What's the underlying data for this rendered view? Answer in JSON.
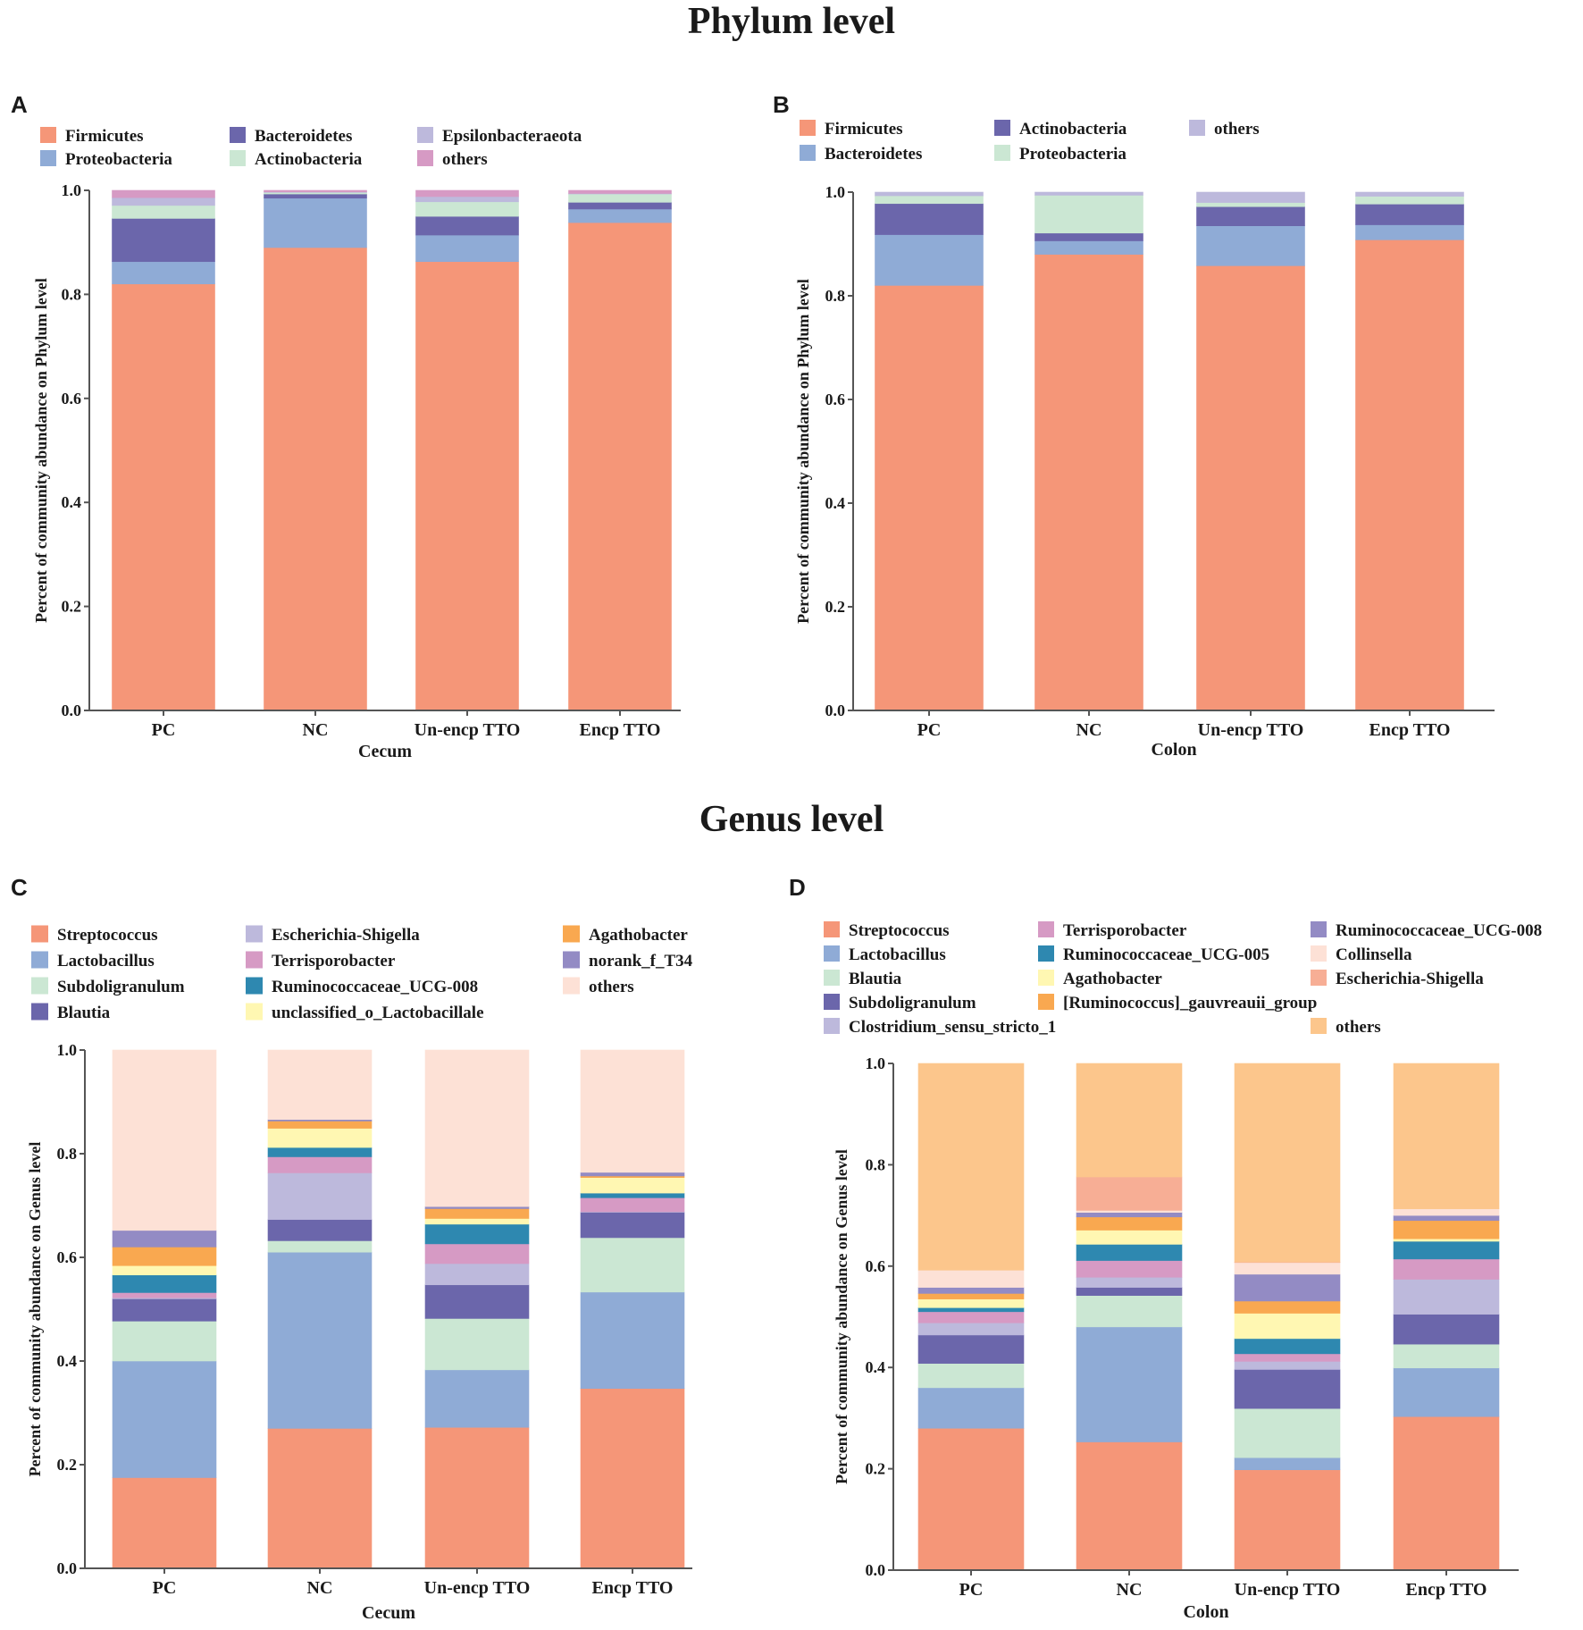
{
  "titles": {
    "phylum": "Phylum level",
    "genus": "Genus level"
  },
  "chart_data": [
    {
      "id": "A",
      "type": "bar",
      "stacked": true,
      "title": "",
      "xlabel": "Cecum",
      "ylabel": "Percent of community abundance on Phylum level",
      "ylim": [
        0,
        1.0
      ],
      "yticks": [
        "0.0",
        "0.2",
        "0.4",
        "0.6",
        "0.8",
        "1.0"
      ],
      "categories": [
        "PC",
        "NC",
        "Un-encp TTO",
        "Encp TTO"
      ],
      "legend_columns": 3,
      "series": [
        {
          "name": "Firmicutes",
          "color": "#F59678",
          "values": [
            0.82,
            0.89,
            0.863,
            0.938
          ]
        },
        {
          "name": "Proteobacteria",
          "color": "#8FABD6",
          "values": [
            0.043,
            0.095,
            0.051,
            0.026
          ]
        },
        {
          "name": "Bacteroidetes",
          "color": "#6B66AB",
          "values": [
            0.083,
            0.008,
            0.036,
            0.013
          ]
        },
        {
          "name": "Actinobacteria",
          "color": "#CBE7D3",
          "values": [
            0.025,
            0.003,
            0.028,
            0.016
          ]
        },
        {
          "name": "Epsilonbacteraeota",
          "color": "#BDB9DC",
          "values": [
            0.015,
            0.001,
            0.01,
            0.001
          ]
        },
        {
          "name": "others",
          "color": "#D69AC4",
          "values": [
            0.014,
            0.003,
            0.012,
            0.006
          ]
        }
      ],
      "legend_order": [
        "Firmicutes",
        "Proteobacteria",
        "Bacteroidetes",
        "Actinobacteria",
        "Epsilonbacteraeota",
        "others"
      ]
    },
    {
      "id": "B",
      "type": "bar",
      "stacked": true,
      "title": "",
      "xlabel": "Colon",
      "ylabel": "Percent of community abundance on Phylum level",
      "ylim": [
        0,
        1.0
      ],
      "yticks": [
        "0.0",
        "0.2",
        "0.4",
        "0.6",
        "0.8",
        "1.0"
      ],
      "categories": [
        "PC",
        "NC",
        "Un-encp TTO",
        "Encp TTO"
      ],
      "legend_columns": 3,
      "series": [
        {
          "name": "Firmicutes",
          "color": "#F59678",
          "values": [
            0.82,
            0.88,
            0.858,
            0.908
          ]
        },
        {
          "name": "Bacteroidetes",
          "color": "#8FABD6",
          "values": [
            0.098,
            0.026,
            0.077,
            0.029
          ]
        },
        {
          "name": "Actinobacteria",
          "color": "#6B66AB",
          "values": [
            0.06,
            0.015,
            0.037,
            0.04
          ]
        },
        {
          "name": "Proteobacteria",
          "color": "#CBE7D3",
          "values": [
            0.015,
            0.073,
            0.008,
            0.015
          ]
        },
        {
          "name": "others",
          "color": "#BDB9DC",
          "values": [
            0.007,
            0.006,
            0.02,
            0.008
          ]
        }
      ],
      "legend_order": [
        "Firmicutes",
        "Bacteroidetes",
        "Actinobacteria",
        "Proteobacteria",
        "others"
      ]
    },
    {
      "id": "C",
      "type": "bar",
      "stacked": true,
      "title": "",
      "xlabel": "Cecum",
      "ylabel": "Percent of community abundance on Genus level",
      "ylim": [
        0,
        1.0
      ],
      "yticks": [
        "0.0",
        "0.2",
        "0.4",
        "0.6",
        "0.8",
        "1.0"
      ],
      "categories": [
        "PC",
        "NC",
        "Un-encp TTO",
        "Encp TTO"
      ],
      "legend_columns": 3,
      "series": [
        {
          "name": "Streptococcus",
          "color": "#F59678",
          "values": [
            0.175,
            0.27,
            0.272,
            0.347
          ]
        },
        {
          "name": "Lactobacillus",
          "color": "#8FABD6",
          "values": [
            0.225,
            0.34,
            0.111,
            0.186
          ]
        },
        {
          "name": "Subdoligranulum",
          "color": "#CBE7D3",
          "values": [
            0.077,
            0.022,
            0.099,
            0.105
          ]
        },
        {
          "name": "Blautia",
          "color": "#6B66AB",
          "values": [
            0.043,
            0.041,
            0.065,
            0.049
          ]
        },
        {
          "name": "Escherichia-Shigella",
          "color": "#BDB9DC",
          "values": [
            0.002,
            0.09,
            0.041,
            0.001
          ]
        },
        {
          "name": "Terrisporobacter",
          "color": "#D69AC4",
          "values": [
            0.01,
            0.031,
            0.038,
            0.027
          ]
        },
        {
          "name": "Ruminococcaceae_UCG-008",
          "color": "#2E88B0",
          "values": [
            0.034,
            0.018,
            0.038,
            0.009
          ]
        },
        {
          "name": "unclassified_o_Lactobacillale",
          "color": "#FFF7B2",
          "values": [
            0.018,
            0.037,
            0.011,
            0.03
          ]
        },
        {
          "name": "Agathobacter",
          "color": "#F9A850",
          "values": [
            0.036,
            0.014,
            0.019,
            0.003
          ]
        },
        {
          "name": "norank_f_T34",
          "color": "#938BC4",
          "values": [
            0.032,
            0.003,
            0.004,
            0.007
          ]
        },
        {
          "name": "others",
          "color": "#FDE1D6",
          "values": [
            0.348,
            0.134,
            0.302,
            0.236
          ]
        }
      ],
      "legend_order": [
        "Streptococcus",
        "Lactobacillus",
        "Subdoligranulum",
        "Blautia",
        "Escherichia-Shigella",
        "Terrisporobacter",
        "Ruminococcaceae_UCG-008",
        "unclassified_o_Lactobacillale",
        "Agathobacter",
        "norank_f_T34",
        "others"
      ]
    },
    {
      "id": "D",
      "type": "bar",
      "stacked": true,
      "title": "",
      "xlabel": "Colon",
      "ylabel": "Percent of community abundance on Genus level",
      "ylim": [
        0,
        1.0
      ],
      "yticks": [
        "0.0",
        "0.2",
        "0.4",
        "0.6",
        "0.8",
        "1.0"
      ],
      "categories": [
        "PC",
        "NC",
        "Un-encp TTO",
        "Encp TTO"
      ],
      "legend_columns": 3,
      "series": [
        {
          "name": "Streptococcus",
          "color": "#F59678",
          "values": [
            0.28,
            0.253,
            0.198,
            0.303
          ]
        },
        {
          "name": "Lactobacillus",
          "color": "#8FABD6",
          "values": [
            0.08,
            0.227,
            0.024,
            0.096
          ]
        },
        {
          "name": "Blautia",
          "color": "#CBE7D3",
          "values": [
            0.048,
            0.062,
            0.097,
            0.047
          ]
        },
        {
          "name": "Subdoligranulum",
          "color": "#6B66AB",
          "values": [
            0.056,
            0.016,
            0.077,
            0.059
          ]
        },
        {
          "name": "Clostridium_sensu_stricto_1",
          "color": "#BDB9DC",
          "values": [
            0.024,
            0.02,
            0.016,
            0.069
          ]
        },
        {
          "name": "Terrisporobacter",
          "color": "#D69AC4",
          "values": [
            0.022,
            0.033,
            0.015,
            0.04
          ]
        },
        {
          "name": "Ruminococcaceae_UCG-005",
          "color": "#2E88B0",
          "values": [
            0.008,
            0.032,
            0.03,
            0.035
          ]
        },
        {
          "name": "Agathobacter",
          "color": "#FFF7B2",
          "values": [
            0.017,
            0.028,
            0.05,
            0.005
          ]
        },
        {
          "name": "[Ruminococcus]_gauvreauii_group",
          "color": "#F9A850",
          "values": [
            0.011,
            0.026,
            0.024,
            0.036
          ]
        },
        {
          "name": "Ruminococcaceae_UCG-008",
          "color": "#938BC4",
          "values": [
            0.012,
            0.009,
            0.053,
            0.01
          ]
        },
        {
          "name": "Collinsella",
          "color": "#FDE1D6",
          "values": [
            0.034,
            0.004,
            0.023,
            0.013
          ]
        },
        {
          "name": "Escherichia-Shigella",
          "color": "#F7AE95",
          "values": [
            0.0,
            0.066,
            0.001,
            0.0
          ]
        },
        {
          "name": "others",
          "color": "#FCC68C",
          "values": [
            0.408,
            0.224,
            0.392,
            0.287
          ]
        }
      ],
      "legend_order": [
        "Streptococcus",
        "Lactobacillus",
        "Blautia",
        "Subdoligranulum",
        "Clostridium_sensu_stricto_1",
        "Terrisporobacter",
        "Ruminococcaceae_UCG-005",
        "Agathobacter",
        "[Ruminococcus]_gauvreauii_group",
        "Ruminococcaceae_UCG-008",
        "Collinsella",
        "Escherichia-Shigella",
        "others"
      ]
    }
  ]
}
